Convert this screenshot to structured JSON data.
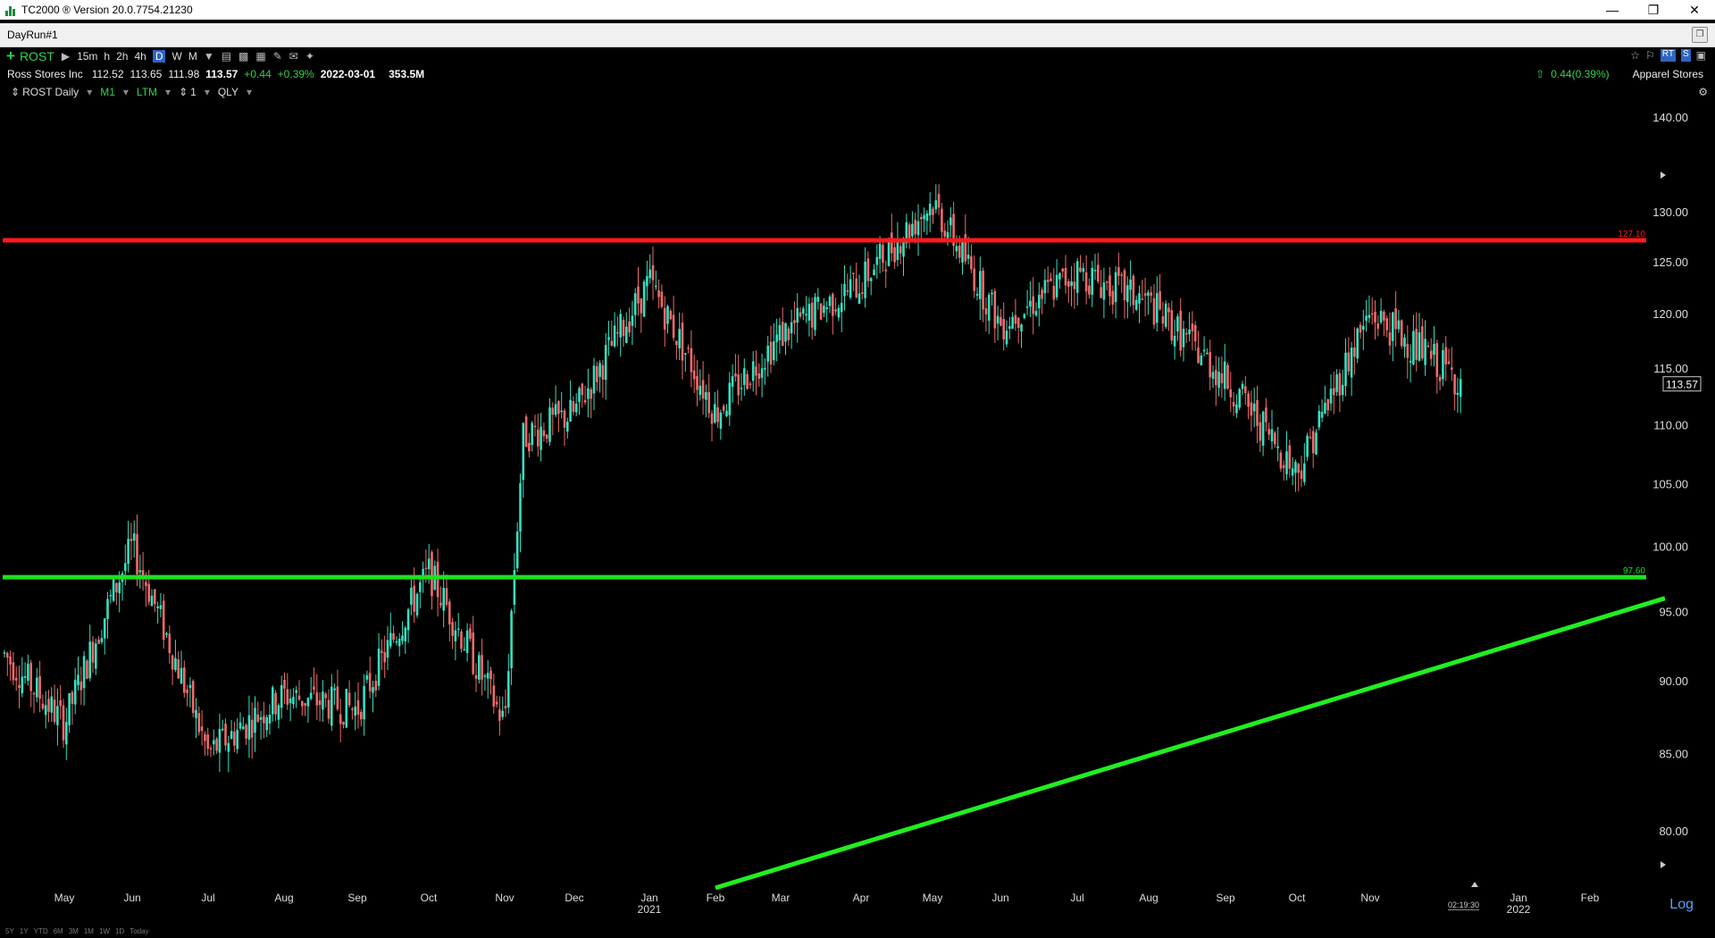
{
  "window": {
    "title": "TC2000 ® Version 20.0.7754.21230"
  },
  "tab": {
    "label": "DayRun#1"
  },
  "toolbar": {
    "symbol": "ROST",
    "timeframes": [
      "15m",
      "h",
      "2h",
      "4h",
      "D",
      "W",
      "M"
    ],
    "active_timeframe": "D"
  },
  "quote": {
    "name": "Ross Stores Inc",
    "open": "112.52",
    "high": "113.65",
    "low": "111.98",
    "close": "113.57",
    "change": "+0.44",
    "change_pct": "+0.39%",
    "date": "2022-03-01",
    "volume": "353.5M",
    "change_summary": "0.44(0.39%)",
    "industry": "Apparel Stores"
  },
  "chartbar": {
    "symbol_label": "ROST Daily",
    "m1": "M1",
    "ltm": "LTM",
    "count": "1",
    "qly": "QLY"
  },
  "colors": {
    "up": "#34e0c0",
    "down": "#f06a6a",
    "resistance": "#ff1a1a",
    "support": "#22dd22",
    "trend": "#22ee22"
  },
  "chart_data": {
    "type": "candlestick",
    "y_ticks": [
      140,
      130,
      125,
      120,
      115,
      110,
      105,
      100,
      95,
      90,
      85,
      80
    ],
    "y_tick_labels": [
      "140.00",
      "130.00",
      "125.00",
      "120.00",
      "115.00",
      "110.00",
      "105.00",
      "100.00",
      "95.00",
      "90.00",
      "85.00",
      "80.00"
    ],
    "y_scale": "log",
    "x_months": [
      "May",
      "Jun",
      "Jul",
      "Aug",
      "Sep",
      "Oct",
      "Nov",
      "Dec",
      "Jan",
      "Feb",
      "Mar",
      "Apr",
      "May",
      "Jun",
      "Jul",
      "Aug",
      "Sep",
      "Oct",
      "Nov",
      "Jan",
      "Feb"
    ],
    "x_years": [
      "2021",
      "2022"
    ],
    "last_price_label": "113.57",
    "horizontal_lines": [
      {
        "name": "resistance",
        "price": 127.1,
        "label": "127.10"
      },
      {
        "name": "support",
        "price": 97.6,
        "label": "97.60"
      }
    ],
    "trendline": {
      "from": {
        "date": "2021-02",
        "price": 76.5
      },
      "to": {
        "date": "2022-02",
        "price": 96
      }
    },
    "price_path": [
      {
        "date": "2020-04",
        "price": 92
      },
      {
        "date": "2020-05",
        "price": 87
      },
      {
        "date": "2020-06",
        "price": 100
      },
      {
        "date": "2020-07",
        "price": 85
      },
      {
        "date": "2020-08",
        "price": 89
      },
      {
        "date": "2020-09",
        "price": 88
      },
      {
        "date": "2020-10",
        "price": 98
      },
      {
        "date": "2020-11",
        "price": 87
      },
      {
        "date": "2020-11-16",
        "price": 109
      },
      {
        "date": "2020-12",
        "price": 111
      },
      {
        "date": "2021-01",
        "price": 123
      },
      {
        "date": "2021-02",
        "price": 111
      },
      {
        "date": "2021-03",
        "price": 118
      },
      {
        "date": "2021-04",
        "price": 123
      },
      {
        "date": "2021-05",
        "price": 131
      },
      {
        "date": "2021-06",
        "price": 119
      },
      {
        "date": "2021-07",
        "price": 124
      },
      {
        "date": "2021-08",
        "price": 121
      },
      {
        "date": "2021-09",
        "price": 114
      },
      {
        "date": "2021-10",
        "price": 106
      },
      {
        "date": "2021-11",
        "price": 120
      },
      {
        "date": "2021-12",
        "price": 113.57
      }
    ]
  },
  "footer": {
    "ranges": [
      "5Y",
      "1Y",
      "YTD",
      "6M",
      "3M",
      "1M",
      "1W",
      "1D",
      "Today"
    ]
  },
  "clock": "02:19:30",
  "log_button": "Log"
}
